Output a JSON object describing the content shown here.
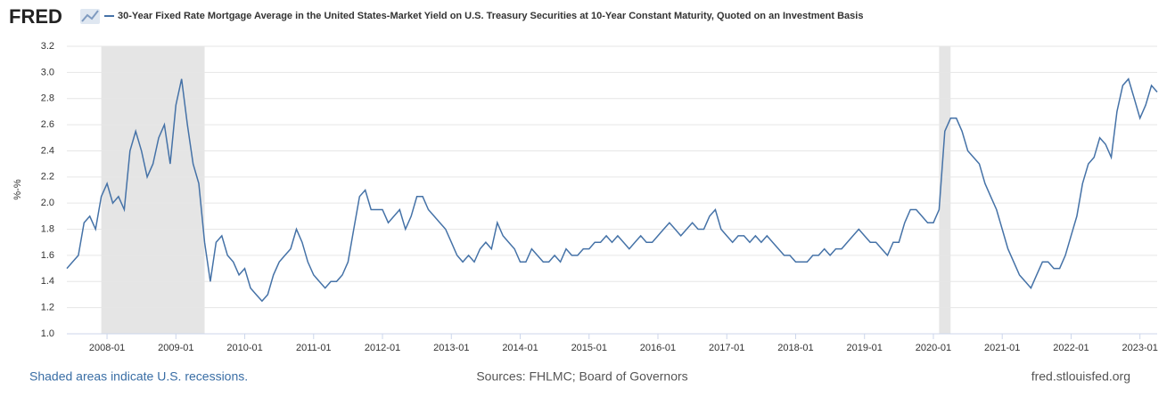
{
  "logo": "FRED",
  "footer": {
    "note": "Shaded areas indicate U.S. recessions.",
    "sources": "Sources: FHLMC; Board of Governors",
    "site": "fred.stlouisfed.org"
  },
  "chart_data": {
    "type": "line",
    "ylabel": "%-%",
    "grid": true,
    "recessions": [
      {
        "start": "2007-12",
        "end": "2009-06"
      },
      {
        "start": "2020-02",
        "end": "2020-04"
      }
    ],
    "xlim": [
      "2007-06",
      "2023-04"
    ],
    "xticks": [
      "2008-01",
      "2009-01",
      "2010-01",
      "2011-01",
      "2012-01",
      "2013-01",
      "2014-01",
      "2015-01",
      "2016-01",
      "2017-01",
      "2018-01",
      "2019-01",
      "2020-01",
      "2021-01",
      "2022-01",
      "2023-01"
    ],
    "ylim": [
      1.0,
      3.2
    ],
    "yticks": [
      {
        "value": 1.0,
        "label": "1.0"
      },
      1.2,
      1.4,
      1.6,
      1.8,
      {
        "value": 2.0,
        "label": "2.0"
      },
      2.2,
      2.4,
      2.6,
      2.8,
      {
        "value": 3.0,
        "label": "3.0"
      },
      3.2
    ],
    "x": [
      "2007-06",
      "2007-07",
      "2007-08",
      "2007-09",
      "2007-10",
      "2007-11",
      "2007-12",
      "2008-01",
      "2008-02",
      "2008-03",
      "2008-04",
      "2008-05",
      "2008-06",
      "2008-07",
      "2008-08",
      "2008-09",
      "2008-10",
      "2008-11",
      "2008-12",
      "2009-01",
      "2009-02",
      "2009-03",
      "2009-04",
      "2009-05",
      "2009-06",
      "2009-07",
      "2009-08",
      "2009-09",
      "2009-10",
      "2009-11",
      "2009-12",
      "2010-01",
      "2010-02",
      "2010-03",
      "2010-04",
      "2010-05",
      "2010-06",
      "2010-07",
      "2010-08",
      "2010-09",
      "2010-10",
      "2010-11",
      "2010-12",
      "2011-01",
      "2011-02",
      "2011-03",
      "2011-04",
      "2011-05",
      "2011-06",
      "2011-07",
      "2011-08",
      "2011-09",
      "2011-10",
      "2011-11",
      "2011-12",
      "2012-01",
      "2012-02",
      "2012-03",
      "2012-04",
      "2012-05",
      "2012-06",
      "2012-07",
      "2012-08",
      "2012-09",
      "2012-10",
      "2012-11",
      "2012-12",
      "2013-01",
      "2013-02",
      "2013-03",
      "2013-04",
      "2013-05",
      "2013-06",
      "2013-07",
      "2013-08",
      "2013-09",
      "2013-10",
      "2013-11",
      "2013-12",
      "2014-01",
      "2014-02",
      "2014-03",
      "2014-04",
      "2014-05",
      "2014-06",
      "2014-07",
      "2014-08",
      "2014-09",
      "2014-10",
      "2014-11",
      "2014-12",
      "2015-01",
      "2015-02",
      "2015-03",
      "2015-04",
      "2015-05",
      "2015-06",
      "2015-07",
      "2015-08",
      "2015-09",
      "2015-10",
      "2015-11",
      "2015-12",
      "2016-01",
      "2016-02",
      "2016-03",
      "2016-04",
      "2016-05",
      "2016-06",
      "2016-07",
      "2016-08",
      "2016-09",
      "2016-10",
      "2016-11",
      "2016-12",
      "2017-01",
      "2017-02",
      "2017-03",
      "2017-04",
      "2017-05",
      "2017-06",
      "2017-07",
      "2017-08",
      "2017-09",
      "2017-10",
      "2017-11",
      "2017-12",
      "2018-01",
      "2018-02",
      "2018-03",
      "2018-04",
      "2018-05",
      "2018-06",
      "2018-07",
      "2018-08",
      "2018-09",
      "2018-10",
      "2018-11",
      "2018-12",
      "2019-01",
      "2019-02",
      "2019-03",
      "2019-04",
      "2019-05",
      "2019-06",
      "2019-07",
      "2019-08",
      "2019-09",
      "2019-10",
      "2019-11",
      "2019-12",
      "2020-01",
      "2020-02",
      "2020-03",
      "2020-04",
      "2020-05",
      "2020-06",
      "2020-07",
      "2020-08",
      "2020-09",
      "2020-10",
      "2020-11",
      "2020-12",
      "2021-01",
      "2021-02",
      "2021-03",
      "2021-04",
      "2021-05",
      "2021-06",
      "2021-07",
      "2021-08",
      "2021-09",
      "2021-10",
      "2021-11",
      "2021-12",
      "2022-01",
      "2022-02",
      "2022-03",
      "2022-04",
      "2022-05",
      "2022-06",
      "2022-07",
      "2022-08",
      "2022-09",
      "2022-10",
      "2022-11",
      "2022-12",
      "2023-01",
      "2023-02",
      "2023-03",
      "2023-04"
    ],
    "series": [
      {
        "name": "30-Year Fixed Rate Mortgage Average in the United States-Market Yield on U.S. Treasury Securities at 10-Year Constant Maturity, Quoted on an Investment Basis",
        "color": "#4572a7",
        "values": [
          1.5,
          1.55,
          1.6,
          1.85,
          1.9,
          1.8,
          2.05,
          2.15,
          2.0,
          2.05,
          1.95,
          2.4,
          2.55,
          2.4,
          2.2,
          2.3,
          2.5,
          2.6,
          2.3,
          2.75,
          2.95,
          2.6,
          2.3,
          2.15,
          1.7,
          1.4,
          1.7,
          1.75,
          1.6,
          1.55,
          1.45,
          1.5,
          1.35,
          1.3,
          1.25,
          1.3,
          1.45,
          1.55,
          1.6,
          1.65,
          1.8,
          1.7,
          1.55,
          1.45,
          1.4,
          1.35,
          1.4,
          1.4,
          1.45,
          1.55,
          1.8,
          2.05,
          2.1,
          1.95,
          1.95,
          1.95,
          1.85,
          1.9,
          1.95,
          1.8,
          1.9,
          2.05,
          2.05,
          1.95,
          1.9,
          1.85,
          1.8,
          1.7,
          1.6,
          1.55,
          1.6,
          1.55,
          1.65,
          1.7,
          1.65,
          1.85,
          1.75,
          1.7,
          1.65,
          1.55,
          1.55,
          1.65,
          1.6,
          1.55,
          1.55,
          1.6,
          1.55,
          1.65,
          1.6,
          1.6,
          1.65,
          1.65,
          1.7,
          1.7,
          1.75,
          1.7,
          1.75,
          1.7,
          1.65,
          1.7,
          1.75,
          1.7,
          1.7,
          1.75,
          1.8,
          1.85,
          1.8,
          1.75,
          1.8,
          1.85,
          1.8,
          1.8,
          1.9,
          1.95,
          1.8,
          1.75,
          1.7,
          1.75,
          1.75,
          1.7,
          1.75,
          1.7,
          1.75,
          1.7,
          1.65,
          1.6,
          1.6,
          1.55,
          1.55,
          1.55,
          1.6,
          1.6,
          1.65,
          1.6,
          1.65,
          1.65,
          1.7,
          1.75,
          1.8,
          1.75,
          1.7,
          1.7,
          1.65,
          1.6,
          1.7,
          1.7,
          1.85,
          1.95,
          1.95,
          1.9,
          1.85,
          1.85,
          1.95,
          2.55,
          2.65,
          2.65,
          2.55,
          2.4,
          2.35,
          2.3,
          2.15,
          2.05,
          1.95,
          1.8,
          1.65,
          1.55,
          1.45,
          1.4,
          1.35,
          1.45,
          1.55,
          1.55,
          1.5,
          1.5,
          1.6,
          1.75,
          1.9,
          2.15,
          2.3,
          2.35,
          2.5,
          2.45,
          2.35,
          2.7,
          2.9,
          2.95,
          2.8,
          2.65,
          2.75,
          2.9,
          2.85
        ]
      }
    ]
  }
}
